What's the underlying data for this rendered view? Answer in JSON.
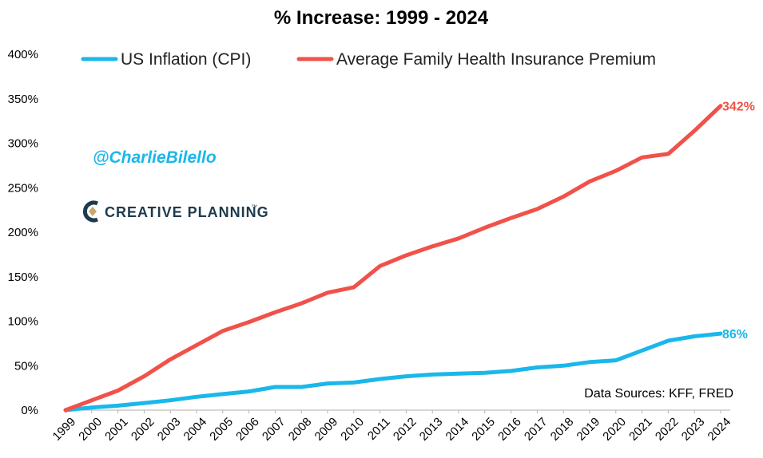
{
  "chart_data": {
    "type": "line",
    "title": "% Increase: 1999 - 2024",
    "x": [
      "1999",
      "2000",
      "2001",
      "2002",
      "2003",
      "2004",
      "2005",
      "2006",
      "2007",
      "2008",
      "2009",
      "2010",
      "2011",
      "2012",
      "2013",
      "2014",
      "2015",
      "2016",
      "2017",
      "2018",
      "2019",
      "2020",
      "2021",
      "2022",
      "2023",
      "2024"
    ],
    "y_ticks": [
      "0%",
      "50%",
      "100%",
      "150%",
      "200%",
      "250%",
      "300%",
      "350%",
      "400%"
    ],
    "ylim": [
      0,
      400
    ],
    "grid": false,
    "legend_position": "top",
    "series": [
      {
        "name": "US Inflation (CPI)",
        "color": "#1ab7ea",
        "values": [
          0,
          3,
          5,
          8,
          11,
          15,
          18,
          21,
          26,
          26,
          30,
          31,
          35,
          38,
          40,
          41,
          42,
          44,
          48,
          50,
          54,
          56,
          67,
          78,
          83,
          86
        ],
        "end_label": "86%"
      },
      {
        "name": "Average Family Health Insurance Premium",
        "color": "#f0524a",
        "values": [
          0,
          11,
          22,
          38,
          57,
          73,
          89,
          99,
          110,
          120,
          132,
          138,
          162,
          174,
          184,
          193,
          205,
          216,
          226,
          240,
          257,
          269,
          284,
          288,
          314,
          342
        ],
        "end_label": "342%"
      }
    ]
  },
  "annotations": {
    "handle": "@CharlieBilello",
    "handle_color": "#1ab7ea",
    "brand": "CREATIVE PLANNING",
    "brand_mark": "™",
    "source": "Data Sources: KFF, FRED"
  }
}
